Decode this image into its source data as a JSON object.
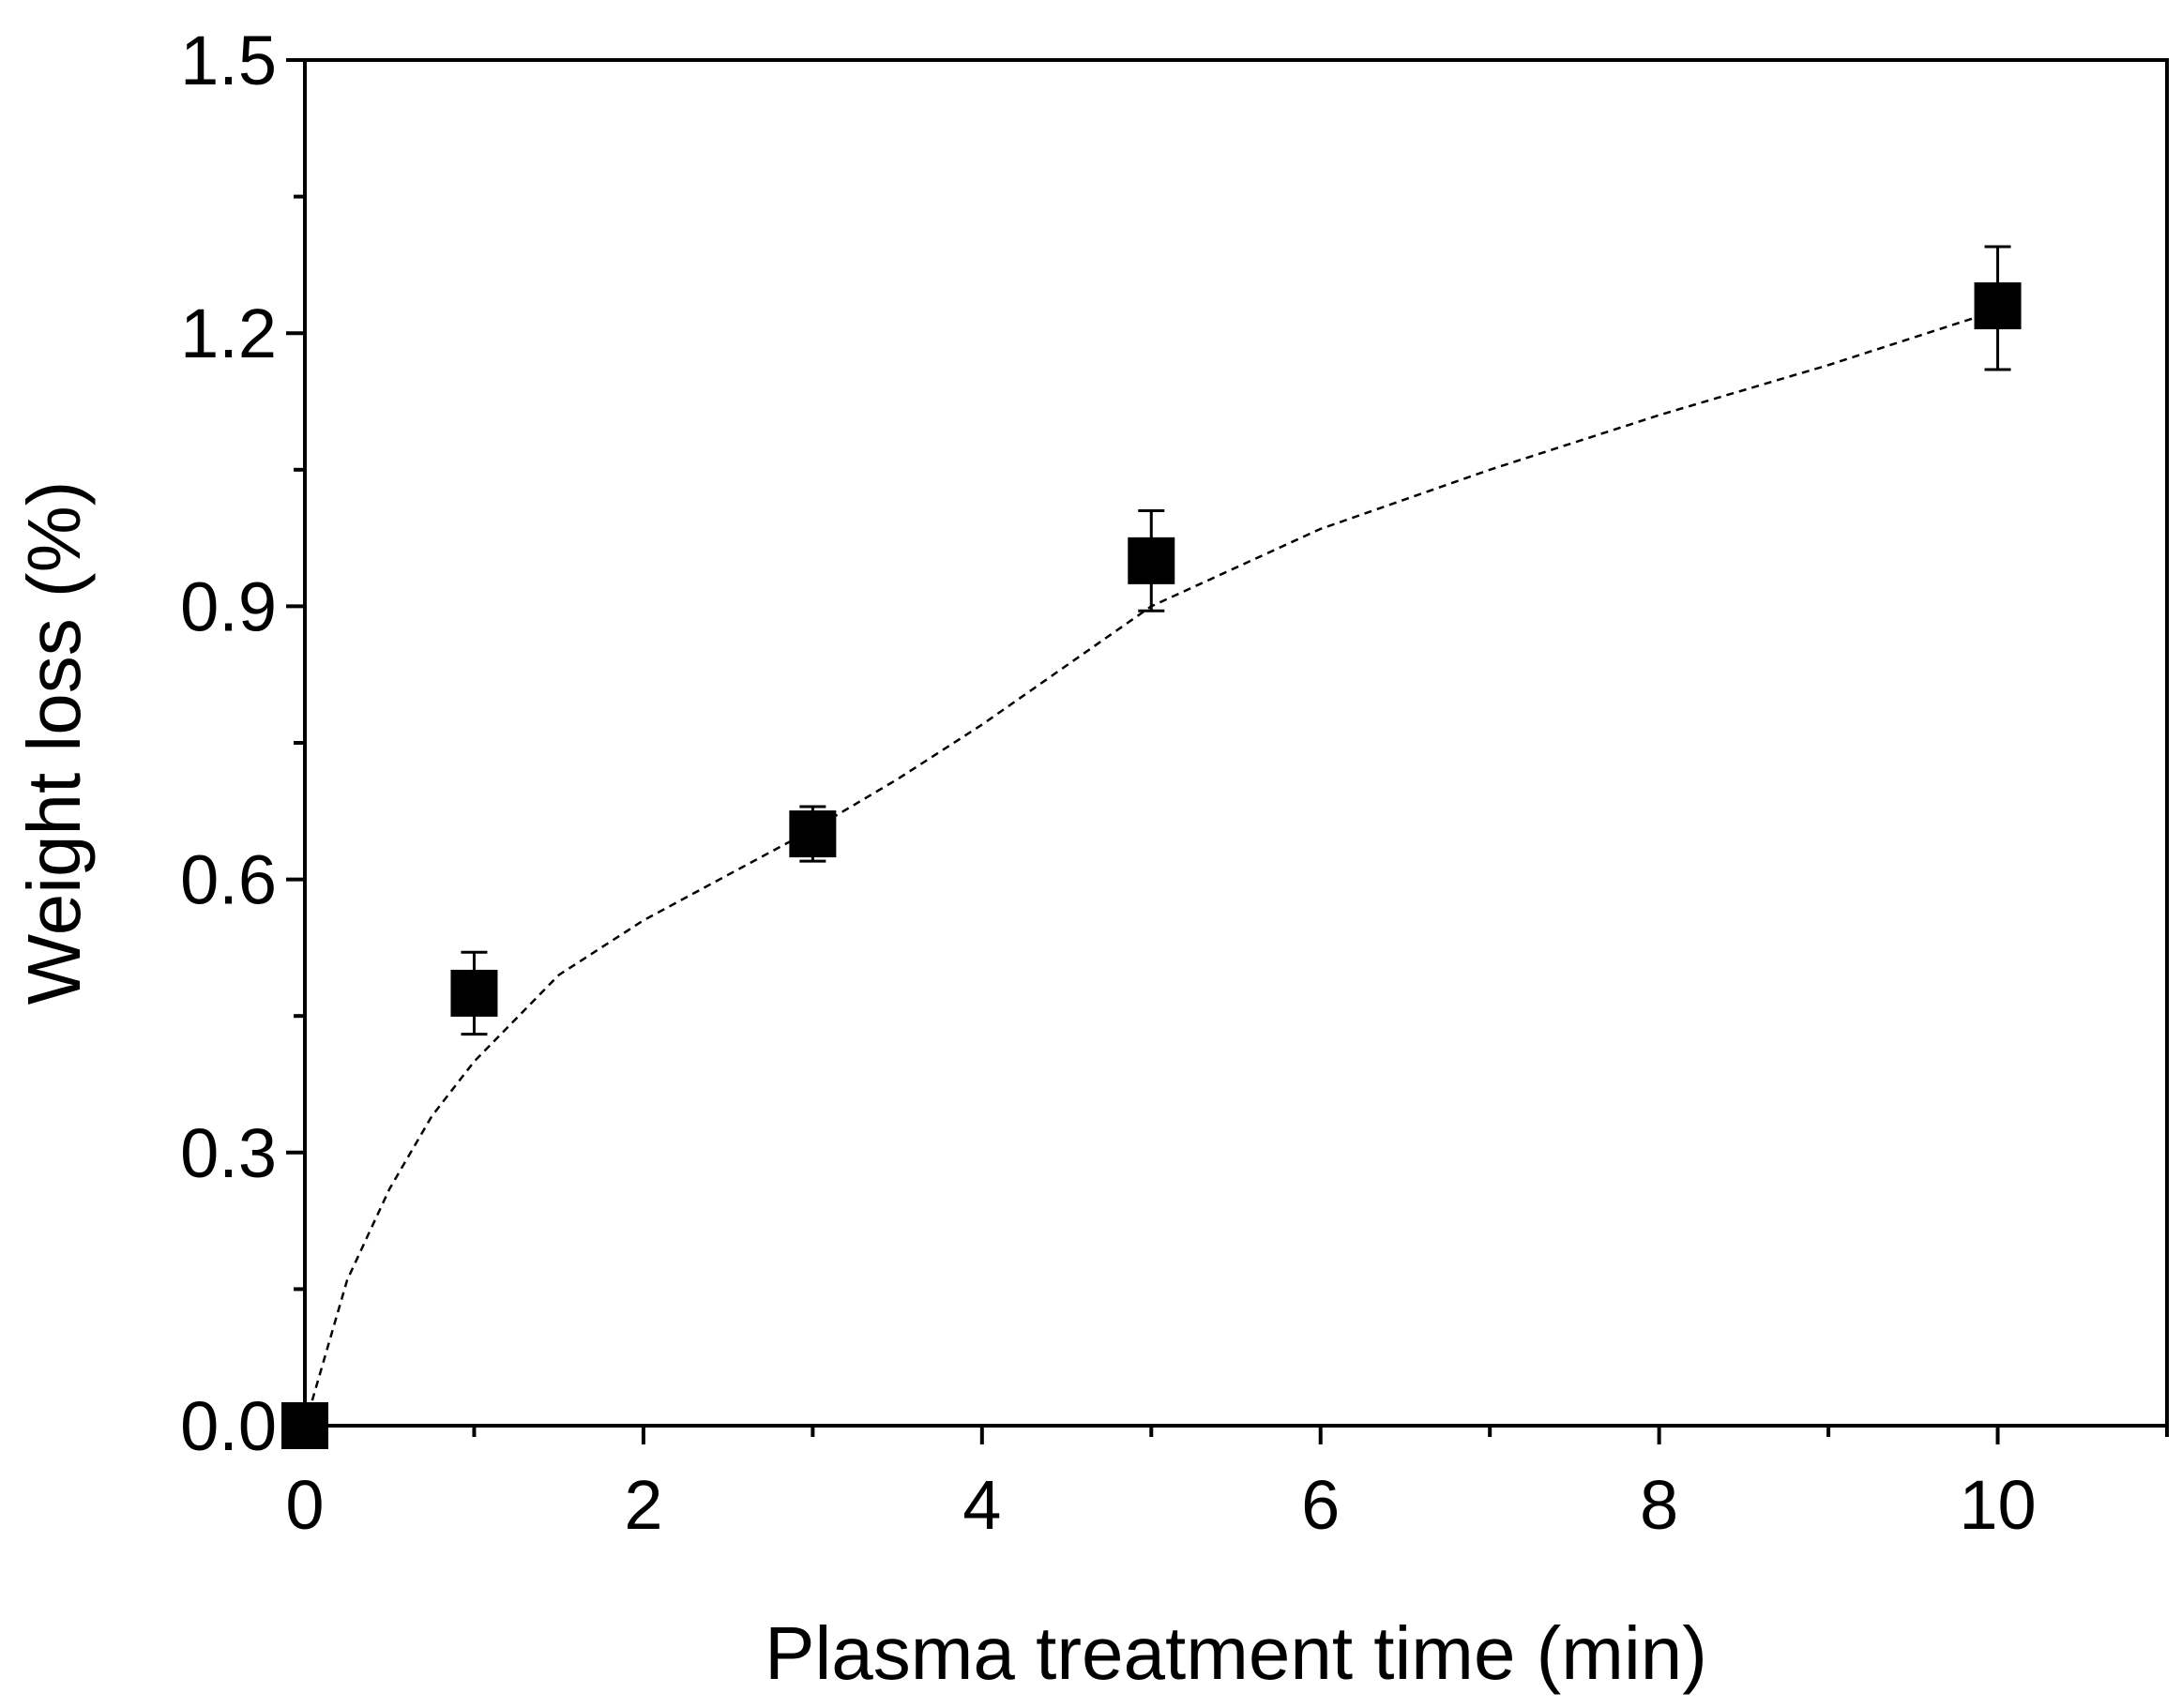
{
  "chart_data": {
    "type": "scatter",
    "title": "",
    "xlabel": "Plasma treatment time (min)",
    "ylabel": "Weight loss (%)",
    "xlim": [
      0,
      11
    ],
    "ylim": [
      0,
      1.5
    ],
    "x_ticks": [
      0,
      2,
      4,
      6,
      8,
      10
    ],
    "x_tick_labels": [
      "0",
      "2",
      "4",
      "6",
      "8",
      "10"
    ],
    "x_minor_ticks": [
      1,
      3,
      5,
      7,
      9,
      11
    ],
    "y_ticks": [
      0.0,
      0.3,
      0.6,
      0.9,
      1.2,
      1.5
    ],
    "y_tick_labels": [
      "0.0",
      "0.3",
      "0.6",
      "0.9",
      "1.2",
      "1.5"
    ],
    "y_minor_ticks": [
      0.15,
      0.45,
      0.75,
      1.05,
      1.35
    ],
    "grid": false,
    "series": [
      {
        "name": "Weight loss",
        "marker": "square",
        "color": "#000000",
        "x": [
          0,
          1,
          3,
          5,
          10
        ],
        "y": [
          0.0,
          0.475,
          0.65,
          0.95,
          1.23
        ],
        "error_low": [
          0.0,
          0.045,
          0.03,
          0.055,
          0.07
        ],
        "error_high": [
          0.0,
          0.045,
          0.03,
          0.055,
          0.065
        ]
      }
    ],
    "fit_line": {
      "style": "dashed",
      "color": "#000000",
      "x": [
        0,
        0.25,
        0.5,
        0.75,
        1,
        1.5,
        2,
        2.5,
        3,
        3.5,
        4,
        4.5,
        5,
        6,
        7,
        8,
        9,
        10
      ],
      "y": [
        0.0,
        0.16,
        0.26,
        0.34,
        0.4,
        0.495,
        0.555,
        0.605,
        0.655,
        0.71,
        0.77,
        0.835,
        0.9,
        0.985,
        1.05,
        1.11,
        1.165,
        1.225
      ]
    }
  }
}
